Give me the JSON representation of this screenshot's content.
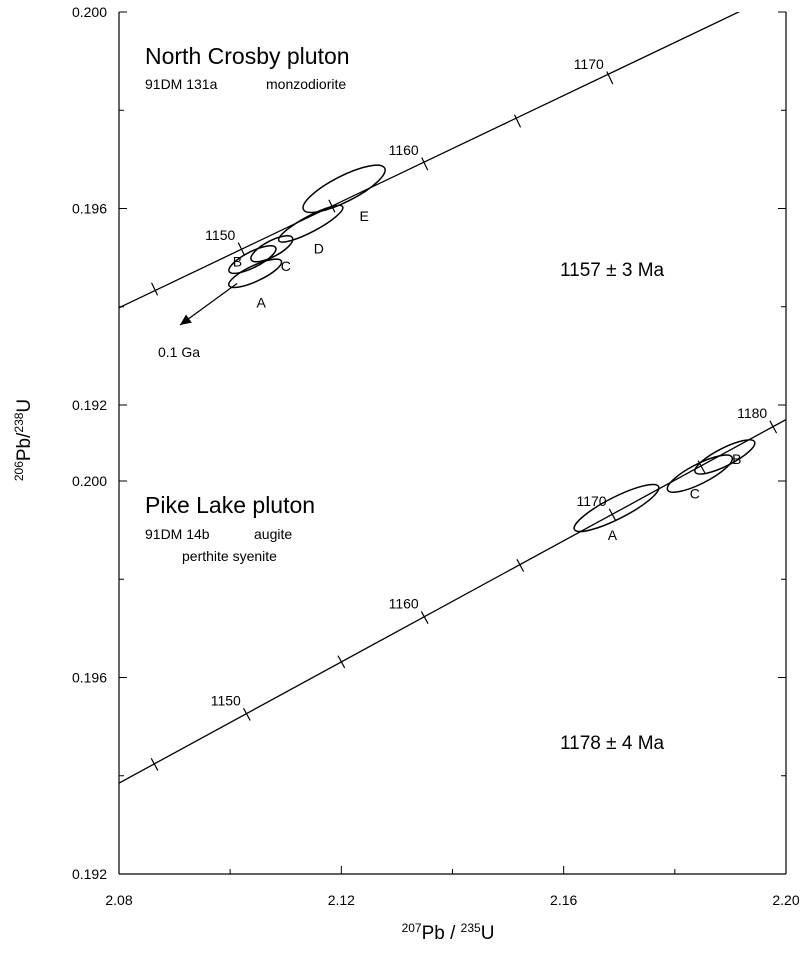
{
  "chart_data": [
    {
      "type": "scatter",
      "title": "North Crosby pluton",
      "subtitle_sample": "91DM 131a",
      "subtitle_rock": "monzodiorite",
      "age_label": "1157 ± 3 Ma",
      "y_ticks": [
        "0.200",
        "0.196",
        "0.192"
      ],
      "xlim": [
        2.08,
        2.2
      ],
      "ylim": [
        0.192,
        0.2
      ],
      "concordia": [
        [
          2.08,
          0.19398
        ],
        [
          2.2,
          0.20046
        ]
      ],
      "age_ticks": [
        {
          "x": 2.0864,
          "y": 0.19436
        },
        {
          "x": 2.102,
          "y": 0.19518,
          "label": "1150"
        },
        {
          "x": 2.1183,
          "y": 0.19605
        },
        {
          "x": 2.135,
          "y": 0.19691,
          "label": "1160"
        },
        {
          "x": 2.1517,
          "y": 0.19778
        },
        {
          "x": 2.1683,
          "y": 0.19866,
          "label": "1170"
        }
      ],
      "ellipses": [
        {
          "label": "A",
          "cx": 2.1045,
          "cy": 0.19468,
          "rx": 0.0052,
          "ry": 0.00016,
          "angle_deg": -25
        },
        {
          "label": "B",
          "cx": 2.104,
          "cy": 0.19496,
          "rx": 0.0047,
          "ry": 0.00016,
          "angle_deg": -27
        },
        {
          "label": "C",
          "cx": 2.1075,
          "cy": 0.19518,
          "rx": 0.0042,
          "ry": 0.00016,
          "angle_deg": -28
        },
        {
          "label": "D",
          "cx": 2.1145,
          "cy": 0.19569,
          "rx": 0.0065,
          "ry": 0.00016,
          "angle_deg": -28
        },
        {
          "label": "E",
          "cx": 2.1205,
          "cy": 0.1964,
          "rx": 0.0082,
          "ry": 0.00026,
          "angle_deg": -27
        }
      ],
      "discordia_label": "0.1 Ga"
    },
    {
      "type": "scatter",
      "title": "Pike Lake pluton",
      "subtitle_sample": "91DM 14b",
      "subtitle_rock_1": "augite",
      "subtitle_rock_2": "perthite syenite",
      "age_label": "1178 ± 4 Ma",
      "y_ticks": [
        "0.200",
        "0.196",
        "0.192"
      ],
      "x_ticks": [
        "2.08",
        "2.12",
        "2.16",
        "2.20"
      ],
      "xlim": [
        2.08,
        2.2
      ],
      "ylim": [
        0.192,
        0.2015
      ],
      "concordia": [
        [
          2.08,
          0.19385
        ],
        [
          2.2,
          0.20125
        ]
      ],
      "age_ticks": [
        {
          "x": 2.0864,
          "y": 0.19423
        },
        {
          "x": 2.103,
          "y": 0.19525,
          "label": "1150"
        },
        {
          "x": 2.12,
          "y": 0.19632
        },
        {
          "x": 2.135,
          "y": 0.19722,
          "label": "1160"
        },
        {
          "x": 2.1522,
          "y": 0.19828
        },
        {
          "x": 2.1688,
          "y": 0.19931,
          "label": "1170"
        },
        {
          "x": 2.1848,
          "y": 0.20029
        },
        {
          "x": 2.1977,
          "y": 0.2011,
          "label": "1180"
        }
      ],
      "ellipses": [
        {
          "label": "A",
          "cx": 2.1695,
          "cy": 0.19945,
          "rx": 0.0085,
          "ry": 0.00022,
          "angle_deg": -27
        },
        {
          "label": "C",
          "cx": 2.1845,
          "cy": 0.20015,
          "rx": 0.0065,
          "ry": 0.0002,
          "angle_deg": -27
        },
        {
          "label": "B",
          "cx": 2.189,
          "cy": 0.20049,
          "rx": 0.006,
          "ry": 0.00018,
          "angle_deg": -27
        }
      ]
    }
  ],
  "axes": {
    "ylabel_pre": "206",
    "ylabel_mid": "Pb/",
    "ylabel_sup2": "238",
    "ylabel_post": "U",
    "xlabel_pre": "207",
    "xlabel_mid": "Pb / ",
    "xlabel_sup2": "235",
    "xlabel_post": "U"
  }
}
